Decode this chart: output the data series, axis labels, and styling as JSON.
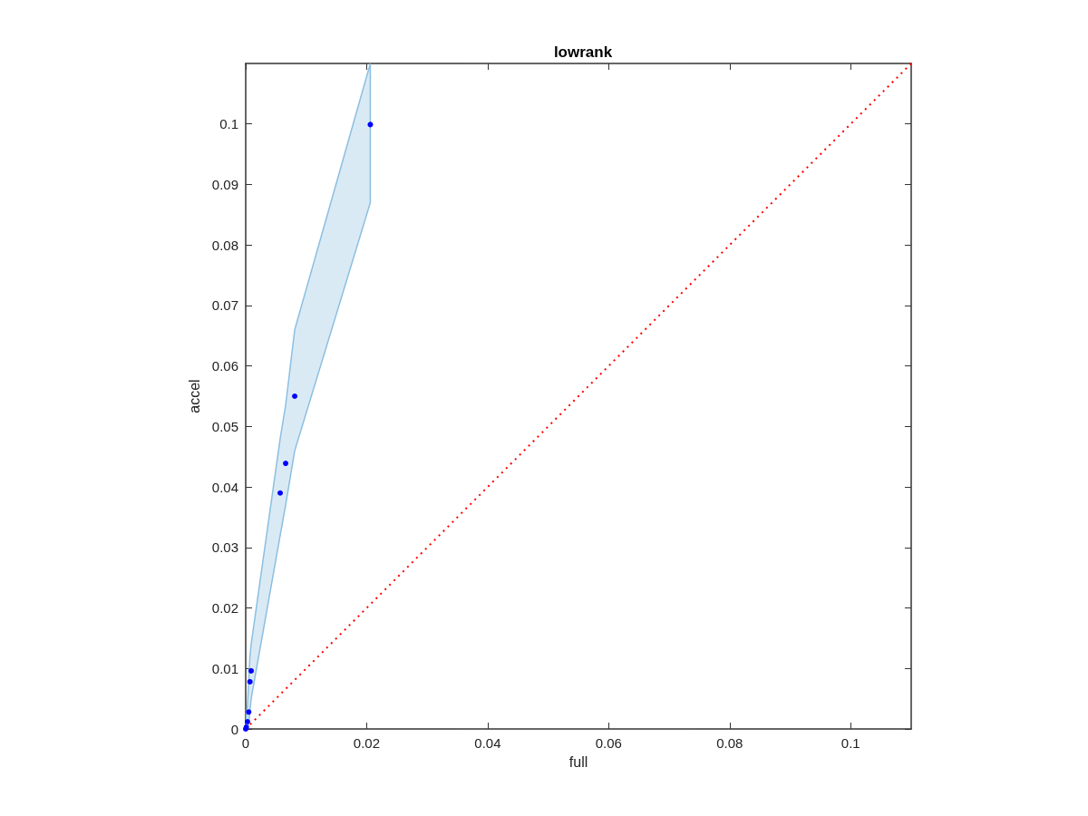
{
  "chart_data": {
    "type": "scatter",
    "title": "lowrank",
    "xlabel": "full",
    "ylabel": "accel",
    "xlim": [
      0,
      0.11
    ],
    "ylim": [
      0,
      0.11
    ],
    "xticks": [
      0,
      0.02,
      0.04,
      0.06,
      0.08,
      0.1
    ],
    "yticks": [
      0,
      0.01,
      0.02,
      0.03,
      0.04,
      0.05,
      0.06,
      0.07,
      0.08,
      0.09,
      0.1
    ],
    "series": [
      {
        "type": "scatter",
        "marker": "circle",
        "color": "#0000ff",
        "x": [
          0,
          0.0001,
          0.0003,
          0.0004,
          0.0005,
          0.0007,
          0.0009,
          0.0057,
          0.0066,
          0.0081,
          0.0206
        ],
        "values": [
          0,
          0.0003,
          0.0012,
          null,
          0.0028,
          0.0078,
          0.0096,
          0.039,
          0.0439,
          0.055,
          0.0999
        ],
        "lower": [
          0,
          0,
          0,
          0.0005,
          0.001,
          0.003,
          0.005,
          0.032,
          0.037,
          0.046,
          0.087
        ],
        "upper": [
          0,
          0.002,
          0.004,
          0.006,
          0.008,
          0.012,
          0.014,
          0.048,
          0.0535,
          0.066,
          0.11
        ]
      },
      {
        "type": "line",
        "marker": "none",
        "color": "#ff0000",
        "line_style": "dotted",
        "x": [
          0,
          0.11
        ],
        "values": [
          0,
          0.11
        ]
      }
    ]
  }
}
